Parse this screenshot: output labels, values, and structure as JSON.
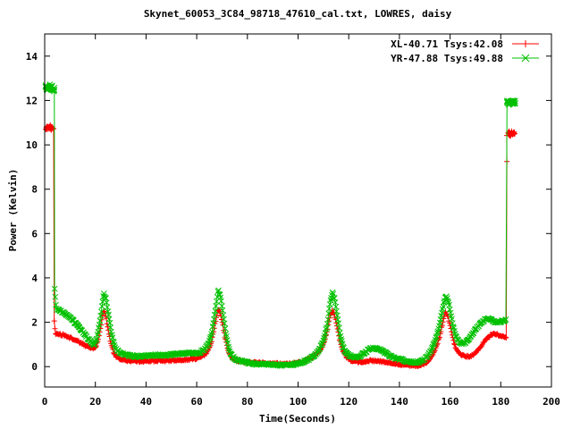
{
  "window": {
    "background": "#ffffff"
  },
  "chart_data": {
    "type": "scatter",
    "title": "Skynet_60053_3C84_98718_47610_cal.txt, LOWRES, daisy",
    "xlabel": "Time(Seconds)",
    "ylabel": "Power (Kelvin)",
    "xlim": [
      0,
      200
    ],
    "ylim": [
      -0.92,
      15.0
    ],
    "xticks": [
      0,
      20,
      40,
      60,
      80,
      100,
      120,
      140,
      160,
      180,
      200
    ],
    "yticks": [
      0,
      2,
      4,
      6,
      8,
      10,
      12,
      14
    ],
    "grid": false,
    "legend_position": "top-right-inside",
    "axis_color": "#000000",
    "marker_step_s": 0.26,
    "noise_amp": 0.045,
    "series": [
      {
        "name": "XL-40.71 Tsys:42.08",
        "color": "#ff0000",
        "marker": "plus",
        "cal_level_start": 10.75,
        "cal_level_end": 10.5,
        "noisy_regions": [
          {
            "t0": 0.4,
            "t1": 3.2,
            "amp": 0.07,
            "step": 0.11,
            "xjitter": 0.3
          },
          {
            "t0": 182.5,
            "t1": 185.5,
            "amp": 0.07,
            "step": 0.11,
            "xjitter": 0.3
          }
        ],
        "anchors": [
          [
            0.4,
            10.75
          ],
          [
            0.9,
            10.8
          ],
          [
            1.4,
            10.68
          ],
          [
            1.9,
            10.85
          ],
          [
            2.4,
            10.72
          ],
          [
            2.9,
            10.78
          ],
          [
            3.2,
            10.75
          ],
          [
            3.55,
            10.7
          ],
          [
            3.6,
            2.3
          ],
          [
            4.2,
            1.5
          ],
          [
            6,
            1.45
          ],
          [
            8,
            1.4
          ],
          [
            10,
            1.3
          ],
          [
            12,
            1.2
          ],
          [
            14,
            1.08
          ],
          [
            16,
            0.96
          ],
          [
            18,
            0.87
          ],
          [
            19.5,
            0.82
          ],
          [
            20.5,
            0.95
          ],
          [
            21.5,
            1.4
          ],
          [
            22.5,
            2.1
          ],
          [
            23.2,
            2.55
          ],
          [
            24,
            2.35
          ],
          [
            25,
            1.7
          ],
          [
            26,
            1.1
          ],
          [
            27,
            0.7
          ],
          [
            28,
            0.45
          ],
          [
            30,
            0.33
          ],
          [
            33,
            0.26
          ],
          [
            36,
            0.25
          ],
          [
            39,
            0.24
          ],
          [
            42,
            0.26
          ],
          [
            45,
            0.27
          ],
          [
            48,
            0.27
          ],
          [
            51,
            0.28
          ],
          [
            54,
            0.3
          ],
          [
            57,
            0.33
          ],
          [
            60,
            0.37
          ],
          [
            62,
            0.44
          ],
          [
            64,
            0.62
          ],
          [
            65.5,
            0.95
          ],
          [
            66.5,
            1.45
          ],
          [
            67.5,
            2.1
          ],
          [
            68.5,
            2.6
          ],
          [
            69.3,
            2.45
          ],
          [
            70.2,
            1.95
          ],
          [
            71,
            1.4
          ],
          [
            72,
            0.9
          ],
          [
            73,
            0.55
          ],
          [
            74,
            0.38
          ],
          [
            76,
            0.28
          ],
          [
            79,
            0.22
          ],
          [
            83,
            0.18
          ],
          [
            87,
            0.16
          ],
          [
            91,
            0.14
          ],
          [
            95,
            0.12
          ],
          [
            98,
            0.14
          ],
          [
            101,
            0.2
          ],
          [
            104,
            0.32
          ],
          [
            106,
            0.45
          ],
          [
            108,
            0.65
          ],
          [
            110,
            1.0
          ],
          [
            111.5,
            1.6
          ],
          [
            112.6,
            2.25
          ],
          [
            113.5,
            2.52
          ],
          [
            114.3,
            2.35
          ],
          [
            115.2,
            1.9
          ],
          [
            116.2,
            1.3
          ],
          [
            117.2,
            0.85
          ],
          [
            118.2,
            0.58
          ],
          [
            119.2,
            0.42
          ],
          [
            120.5,
            0.3
          ],
          [
            122,
            0.23
          ],
          [
            124,
            0.2
          ],
          [
            126,
            0.22
          ],
          [
            128,
            0.27
          ],
          [
            130,
            0.26
          ],
          [
            133,
            0.22
          ],
          [
            136,
            0.18
          ],
          [
            139,
            0.13
          ],
          [
            142,
            0.08
          ],
          [
            145,
            0.04
          ],
          [
            148,
            0.06
          ],
          [
            150,
            0.12
          ],
          [
            151.5,
            0.25
          ],
          [
            153,
            0.5
          ],
          [
            154.5,
            0.85
          ],
          [
            156,
            1.4
          ],
          [
            157.3,
            2.1
          ],
          [
            158.3,
            2.45
          ],
          [
            159.2,
            2.25
          ],
          [
            160.2,
            1.75
          ],
          [
            161.2,
            1.2
          ],
          [
            162.2,
            0.82
          ],
          [
            163.2,
            0.62
          ],
          [
            164.5,
            0.52
          ],
          [
            166,
            0.47
          ],
          [
            167.5,
            0.45
          ],
          [
            169,
            0.52
          ],
          [
            170.5,
            0.68
          ],
          [
            172,
            0.9
          ],
          [
            173.5,
            1.12
          ],
          [
            175,
            1.32
          ],
          [
            176.5,
            1.45
          ],
          [
            178,
            1.46
          ],
          [
            179.5,
            1.42
          ],
          [
            181,
            1.38
          ],
          [
            182.2,
            1.3
          ],
          [
            182.35,
            8.65
          ],
          [
            182.5,
            10.45
          ],
          [
            183.1,
            10.55
          ],
          [
            183.7,
            10.42
          ],
          [
            184.3,
            10.6
          ],
          [
            184.9,
            10.5
          ],
          [
            185.5,
            10.55
          ]
        ]
      },
      {
        "name": "YR-47.88 Tsys:49.88",
        "color": "#00c000",
        "marker": "cross",
        "cal_level_start": 12.55,
        "cal_level_end": 11.9,
        "noisy_regions": [
          {
            "t0": 0.3,
            "t1": 3.85,
            "amp": 0.09,
            "step": 0.1,
            "xjitter": 0.3
          },
          {
            "t0": 182.25,
            "t1": 185.9,
            "amp": 0.09,
            "step": 0.1,
            "xjitter": 0.3
          }
        ],
        "anchors": [
          [
            0.3,
            12.55
          ],
          [
            0.8,
            12.62
          ],
          [
            1.3,
            12.5
          ],
          [
            1.8,
            12.66
          ],
          [
            2.3,
            12.52
          ],
          [
            2.8,
            12.6
          ],
          [
            3.3,
            12.48
          ],
          [
            3.85,
            12.55
          ],
          [
            3.9,
            3.52
          ],
          [
            4.5,
            2.62
          ],
          [
            5.5,
            2.55
          ],
          [
            7,
            2.46
          ],
          [
            9,
            2.3
          ],
          [
            11,
            2.1
          ],
          [
            13,
            1.85
          ],
          [
            15,
            1.58
          ],
          [
            17,
            1.28
          ],
          [
            18.5,
            1.08
          ],
          [
            19.5,
            1.0
          ],
          [
            20.5,
            1.25
          ],
          [
            21.5,
            1.85
          ],
          [
            22.5,
            2.6
          ],
          [
            23.3,
            3.28
          ],
          [
            24.1,
            3.1
          ],
          [
            25,
            2.5
          ],
          [
            26,
            1.75
          ],
          [
            27,
            1.15
          ],
          [
            28,
            0.8
          ],
          [
            29.5,
            0.62
          ],
          [
            31,
            0.55
          ],
          [
            33,
            0.5
          ],
          [
            35,
            0.47
          ],
          [
            37,
            0.46
          ],
          [
            39,
            0.48
          ],
          [
            41,
            0.5
          ],
          [
            43,
            0.52
          ],
          [
            45,
            0.52
          ],
          [
            47,
            0.5
          ],
          [
            49,
            0.52
          ],
          [
            51,
            0.55
          ],
          [
            53,
            0.58
          ],
          [
            55,
            0.6
          ],
          [
            57,
            0.62
          ],
          [
            59,
            0.6
          ],
          [
            61,
            0.63
          ],
          [
            63,
            0.76
          ],
          [
            64.5,
            1.0
          ],
          [
            66,
            1.55
          ],
          [
            67.3,
            2.5
          ],
          [
            68.5,
            3.45
          ],
          [
            69.5,
            3.1
          ],
          [
            70.5,
            2.3
          ],
          [
            71.5,
            1.5
          ],
          [
            72.5,
            0.9
          ],
          [
            73.5,
            0.55
          ],
          [
            75,
            0.35
          ],
          [
            77,
            0.25
          ],
          [
            80,
            0.18
          ],
          [
            84,
            0.12
          ],
          [
            88,
            0.1
          ],
          [
            92,
            0.07
          ],
          [
            95,
            0.05
          ],
          [
            98,
            0.1
          ],
          [
            101,
            0.18
          ],
          [
            104,
            0.3
          ],
          [
            106,
            0.45
          ],
          [
            108,
            0.7
          ],
          [
            110,
            1.15
          ],
          [
            111.5,
            1.9
          ],
          [
            112.7,
            2.9
          ],
          [
            113.6,
            3.35
          ],
          [
            114.5,
            3.0
          ],
          [
            115.5,
            2.3
          ],
          [
            116.5,
            1.5
          ],
          [
            117.5,
            1.0
          ],
          [
            118.5,
            0.7
          ],
          [
            120,
            0.5
          ],
          [
            122,
            0.42
          ],
          [
            124,
            0.45
          ],
          [
            126,
            0.6
          ],
          [
            128,
            0.78
          ],
          [
            130,
            0.85
          ],
          [
            132,
            0.8
          ],
          [
            134,
            0.65
          ],
          [
            136,
            0.5
          ],
          [
            138,
            0.4
          ],
          [
            140,
            0.33
          ],
          [
            142,
            0.27
          ],
          [
            144,
            0.22
          ],
          [
            146,
            0.18
          ],
          [
            148,
            0.22
          ],
          [
            150,
            0.35
          ],
          [
            151.5,
            0.55
          ],
          [
            153,
            0.85
          ],
          [
            154.5,
            1.3
          ],
          [
            156,
            1.95
          ],
          [
            157.4,
            2.8
          ],
          [
            158.4,
            3.2
          ],
          [
            159.3,
            2.95
          ],
          [
            160.3,
            2.35
          ],
          [
            161.3,
            1.78
          ],
          [
            162.3,
            1.38
          ],
          [
            163.3,
            1.15
          ],
          [
            164.5,
            1.02
          ],
          [
            166,
            1.1
          ],
          [
            167.5,
            1.25
          ],
          [
            169,
            1.5
          ],
          [
            170.5,
            1.75
          ],
          [
            172,
            1.95
          ],
          [
            173.5,
            2.1
          ],
          [
            175,
            2.18
          ],
          [
            176.5,
            2.1
          ],
          [
            178,
            2.0
          ],
          [
            179.5,
            2.02
          ],
          [
            181,
            2.05
          ],
          [
            182,
            2.1
          ],
          [
            182.1,
            9.85
          ],
          [
            182.25,
            11.9
          ],
          [
            182.9,
            11.95
          ],
          [
            183.5,
            11.85
          ],
          [
            184.1,
            12.0
          ],
          [
            184.7,
            11.88
          ],
          [
            185.3,
            11.96
          ],
          [
            185.9,
            11.9
          ]
        ]
      }
    ]
  }
}
